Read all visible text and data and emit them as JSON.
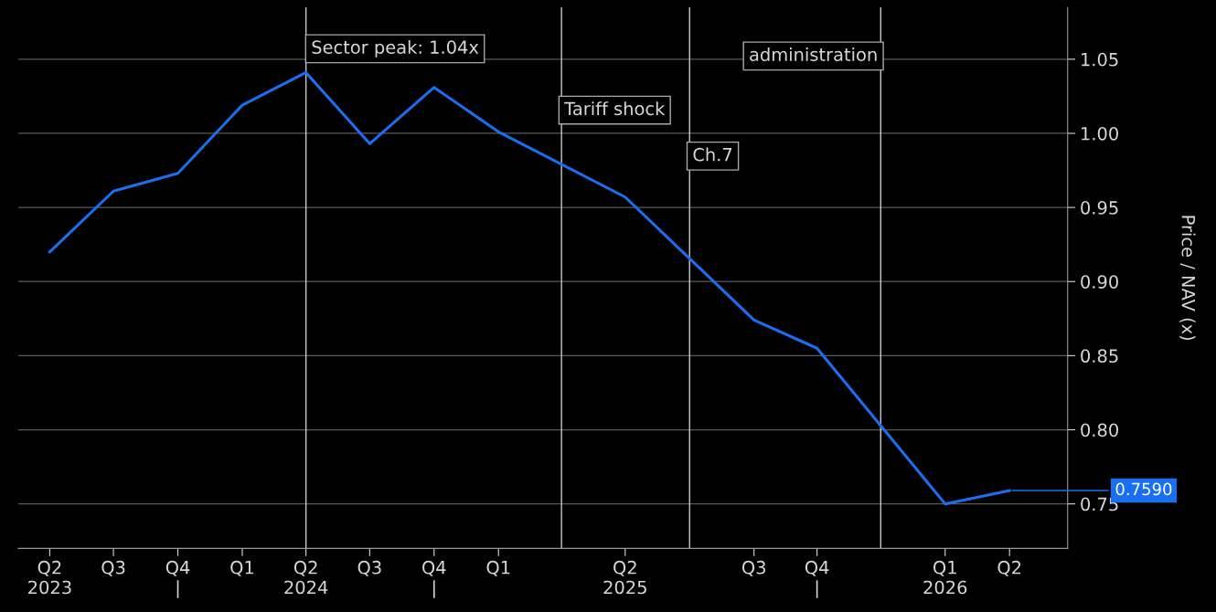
{
  "chart_data": {
    "type": "line",
    "ylabel": "Price / NAV (x)",
    "x": [
      "2023-04",
      "2023-07",
      "2023-10",
      "2024-01",
      "2024-04",
      "2024-07",
      "2024-10",
      "2025-01",
      "2025-07",
      "2026-01",
      "2026-04",
      "2026-10",
      "2027-01"
    ],
    "series": [
      {
        "color": "#1a6ff0",
        "values": [
          0.92,
          0.961,
          0.973,
          1.019,
          1.041,
          0.993,
          1.031,
          1.001,
          0.957,
          0.874,
          0.855,
          0.75,
          0.759
        ]
      }
    ],
    "xlim": [
      "2023-02-15",
      "2027-03-25"
    ],
    "ylim": [
      0.72,
      1.085
    ],
    "xticks": [
      {
        "value": "2023-04",
        "label": "Q2\n2023"
      },
      {
        "value": "2023-07",
        "label": "Q3"
      },
      {
        "value": "2023-10",
        "label": "Q4\n|"
      },
      {
        "value": "2024-01",
        "label": "Q1"
      },
      {
        "value": "2024-04",
        "label": "Q2\n2024"
      },
      {
        "value": "2024-07",
        "label": "Q3"
      },
      {
        "value": "2024-10",
        "label": "Q4\n|"
      },
      {
        "value": "2025-01",
        "label": "Q1"
      },
      {
        "value": "2025-07",
        "label": "Q2\n2025"
      },
      {
        "value": "2026-01",
        "label": "Q3"
      },
      {
        "value": "2026-04",
        "label": "Q4\n|"
      },
      {
        "value": "2026-10",
        "label": "Q1\n2026"
      },
      {
        "value": "2027-01",
        "label": "Q2"
      }
    ],
    "yticks": [
      0.75,
      {
        "value": 0.8,
        "label": "0.80"
      },
      0.85,
      {
        "value": 0.9,
        "label": "0.90"
      },
      0.95,
      {
        "value": 1.0,
        "label": "1.00"
      },
      1.05
    ],
    "ref_lines": [
      {
        "axis": "x",
        "value": "2024-04",
        "color": "#c8c8c8"
      },
      {
        "axis": "x",
        "value": "2025-04",
        "label": "Tariff shock",
        "color": "#c8c8c8"
      },
      {
        "axis": "x",
        "value": "2025-10",
        "label": "Ch.7",
        "color": "#c8c8c8"
      },
      {
        "axis": "x",
        "value": "2026-07",
        "label": "administration",
        "color": "#c8c8c8"
      }
    ],
    "annotations": [
      {
        "text": "Sector peak: 1.04x",
        "x": "2024-04",
        "y": 1.041
      },
      {
        "text": "0.7590",
        "x": "2027-01",
        "y": 0.759
      }
    ],
    "grid": "y",
    "legend": false,
    "marker": "none",
    "line_style": "solid"
  }
}
